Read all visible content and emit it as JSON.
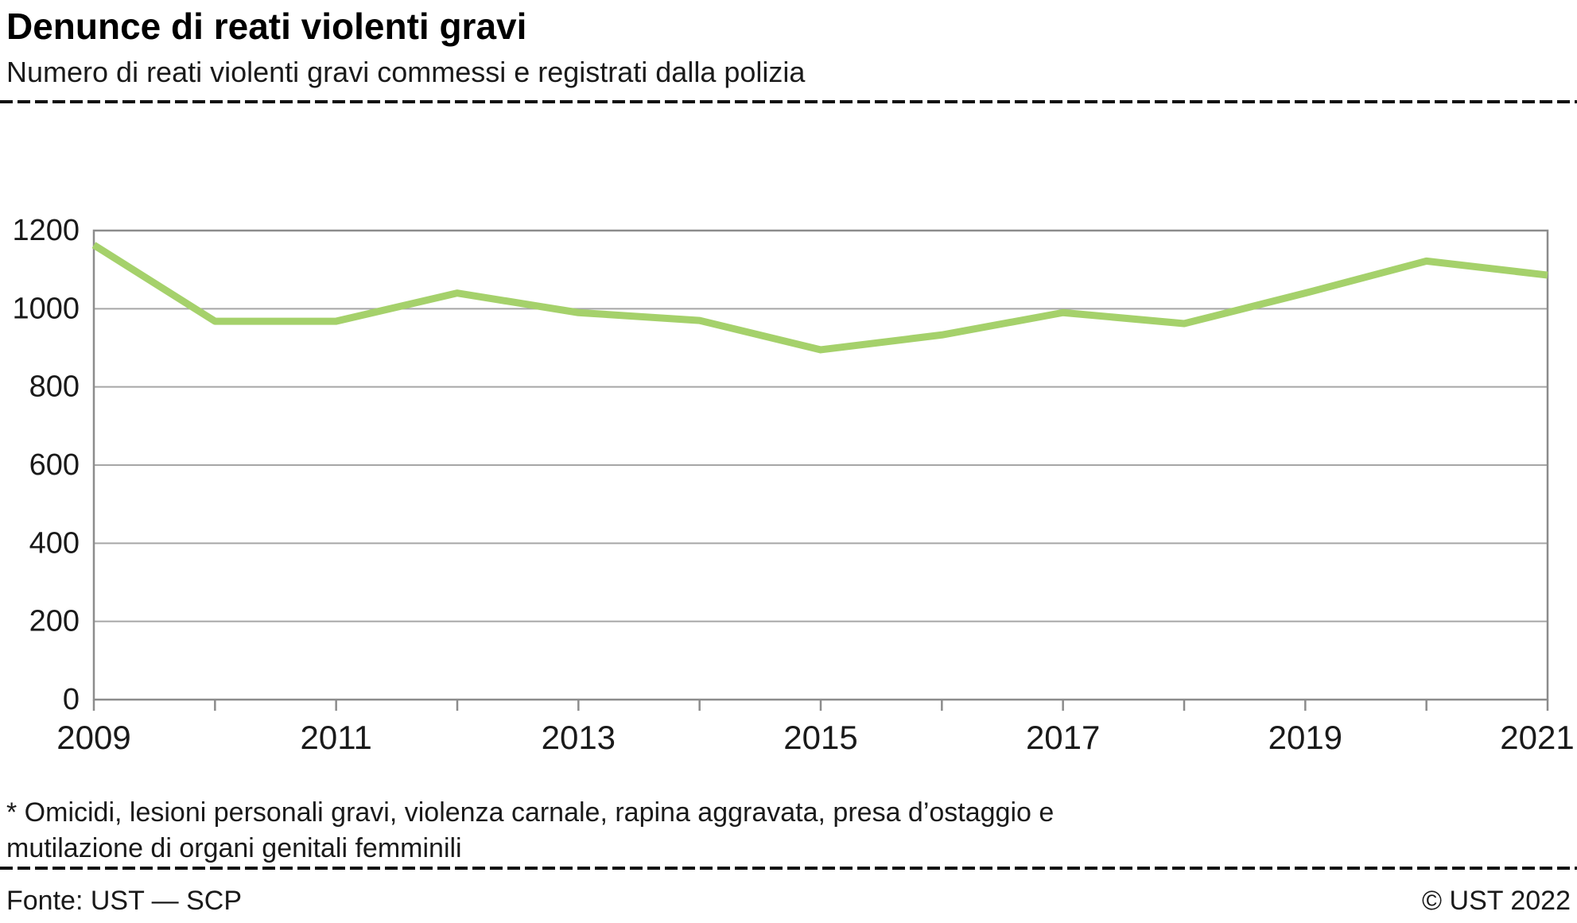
{
  "header": {
    "title": "Denunce di reati violenti gravi",
    "subtitle": "Numero di reati violenti gravi commessi e registrati dalla polizia"
  },
  "footnote": "* Omicidi, lesioni personali gravi, violenza carnale, rapina aggravata, presa d’ostaggio e\nmutilazione di organi genitali femminili",
  "footer": {
    "source": "Fonte: UST — SCP",
    "copyright": "© UST 2022"
  },
  "chart_data": {
    "type": "line",
    "title": "Denunce di reati violenti gravi",
    "subtitle": "Numero di reati violenti gravi commessi e registrati dalla polizia",
    "x": [
      2009,
      2010,
      2011,
      2012,
      2013,
      2014,
      2015,
      2016,
      2017,
      2018,
      2019,
      2020,
      2021
    ],
    "series": [
      {
        "name": "Reati violenti gravi",
        "values": [
          1163,
          968,
          968,
          1040,
          990,
          970,
          895,
          933,
          990,
          962,
          1040,
          1122,
          1086
        ]
      }
    ],
    "ylim": [
      0,
      1200
    ],
    "yticks": [
      0,
      200,
      400,
      600,
      800,
      1000,
      1200
    ],
    "xtick_labels": [
      2009,
      2011,
      2013,
      2015,
      2017,
      2019,
      2021
    ],
    "grid": true,
    "legend": "none",
    "line_color": "#a5d16b",
    "grid_color": "#a6a6a6",
    "axis_color": "#8c8c8c",
    "text_color": "#1a1a1a"
  }
}
